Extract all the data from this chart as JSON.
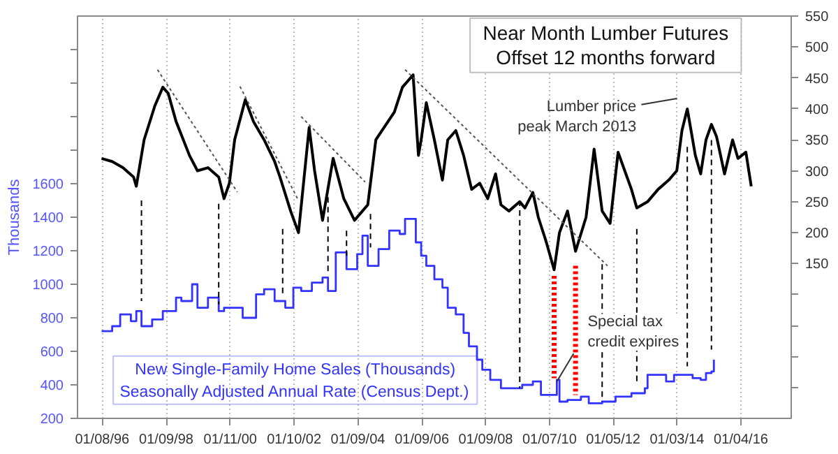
{
  "chart_data": {
    "type": "line",
    "title": "Near Month Lumber Futures",
    "subtitle": "Offset 12 months forward",
    "ylabel": "Thousands",
    "xlim": [
      "1995-04",
      "2017-08"
    ],
    "xticks": [
      {
        "value": "1996-01-08",
        "label": "01/08/96"
      },
      {
        "value": "1998-01-09",
        "label": "01/09/98"
      },
      {
        "value": "2000-01-11",
        "label": "01/11/00"
      },
      {
        "value": "2002-01-10",
        "label": "01/10/02"
      },
      {
        "value": "2004-01-09",
        "label": "01/09/04"
      },
      {
        "value": "2006-01-09",
        "label": "01/09/06"
      },
      {
        "value": "2008-01-09",
        "label": "01/09/08"
      },
      {
        "value": "2010-01-07",
        "label": "01/07/10"
      },
      {
        "value": "2012-01-05",
        "label": "01/05/12"
      },
      {
        "value": "2014-01-03",
        "label": "01/03/14"
      },
      {
        "value": "2016-01-04",
        "label": "01/04/16"
      }
    ],
    "ylim": [
      200,
      2600
    ],
    "yticks": [
      200,
      400,
      600,
      800,
      1000,
      1200,
      1400,
      1600,
      {
        "value": 1800,
        "label": null
      },
      {
        "value": 2000,
        "label": null
      },
      {
        "value": 2200,
        "label": null
      },
      {
        "value": 2400,
        "label": null
      }
    ],
    "y2lim": [
      -100,
      550
    ],
    "y2ticks": [
      {
        "value": -50,
        "label": null
      },
      {
        "value": 0,
        "label": null
      },
      {
        "value": 50,
        "label": null
      },
      {
        "value": 100,
        "label": null
      },
      150,
      200,
      250,
      300,
      350,
      400,
      450,
      500,
      550
    ],
    "grid": "x",
    "series": [
      {
        "axis": "y2",
        "color": "#000000",
        "x": [
          "1996-01",
          "1996-05",
          "1996-09",
          "1997-01",
          "1997-02",
          "1997-05",
          "1997-09",
          "1997-12",
          "1998-02",
          "1998-05",
          "1998-10",
          "1999-01",
          "1999-05",
          "1999-09",
          "1999-11",
          "2000-01",
          "2000-03",
          "2000-07",
          "2000-10",
          "2001-02",
          "2001-06",
          "2001-08",
          "2001-12",
          "2002-03",
          "2002-07",
          "2002-09",
          "2002-12",
          "2003-04",
          "2003-08",
          "2003-12",
          "2004-03",
          "2004-05",
          "2004-08",
          "2005-03",
          "2005-06",
          "2005-10",
          "2005-12",
          "2006-01",
          "2006-03",
          "2006-06",
          "2006-09",
          "2006-11",
          "2007-02",
          "2007-05",
          "2007-08",
          "2007-11",
          "2008-02",
          "2008-05",
          "2008-07",
          "2008-10",
          "2009-02",
          "2009-04",
          "2009-07",
          "2009-09",
          "2009-12",
          "2010-03",
          "2010-05",
          "2010-08",
          "2010-11",
          "2011-03",
          "2011-06",
          "2011-09",
          "2011-12",
          "2012-03",
          "2012-08",
          "2012-10",
          "2013-02",
          "2013-06",
          "2013-10",
          "2014-01",
          "2014-03",
          "2014-05",
          "2014-06",
          "2014-08",
          "2014-10",
          "2014-12",
          "2015-02",
          "2015-04",
          "2015-07",
          "2015-10",
          "2015-12",
          "2016-03",
          "2016-05"
        ],
        "values": [
          320,
          315,
          305,
          290,
          275,
          350,
          405,
          435,
          425,
          380,
          325,
          300,
          305,
          290,
          255,
          280,
          350,
          415,
          380,
          350,
          315,
          290,
          235,
          200,
          370,
          300,
          220,
          320,
          255,
          220,
          235,
          245,
          350,
          395,
          435,
          455,
          325,
          350,
          410,
          350,
          285,
          350,
          365,
          325,
          270,
          280,
          255,
          295,
          245,
          235,
          250,
          240,
          265,
          225,
          185,
          140,
          200,
          235,
          170,
          225,
          335,
          235,
          215,
          330,
          270,
          240,
          250,
          270,
          285,
          300,
          365,
          400,
          375,
          325,
          295,
          350,
          375,
          355,
          295,
          350,
          320,
          330,
          275
        ]
      },
      {
        "type": "step",
        "name": "New Single-Family Home Sales (Thousands)",
        "color": "#3333ff",
        "x": [
          "1996-01",
          "1996-05",
          "1996-08",
          "1996-12",
          "1997-02",
          "1997-04",
          "1997-08",
          "1997-12",
          "1998-05",
          "1998-07",
          "1998-11",
          "1999-01",
          "1999-05",
          "1999-09",
          "1999-11",
          "2000-04",
          "2000-06",
          "2000-11",
          "2001-02",
          "2001-06",
          "2001-10",
          "2002-01",
          "2002-04",
          "2002-08",
          "2002-12",
          "2003-02",
          "2003-05",
          "2003-09",
          "2004-01",
          "2004-03",
          "2004-05",
          "2004-09",
          "2005-01",
          "2005-05",
          "2005-07",
          "2005-11",
          "2006-01",
          "2006-03",
          "2006-06",
          "2006-09",
          "2006-11",
          "2007-02",
          "2007-05",
          "2007-07",
          "2007-10",
          "2007-12",
          "2008-03",
          "2008-07",
          "2008-11",
          "2009-03",
          "2009-07",
          "2009-10",
          "2010-04",
          "2010-05",
          "2010-08",
          "2011-01",
          "2011-04",
          "2011-09",
          "2012-02",
          "2012-08",
          "2013-01",
          "2013-02",
          "2013-09",
          "2013-12",
          "2014-07",
          "2014-10",
          "2014-12",
          "2015-02",
          "2015-03"
        ],
        "values": [
          720,
          750,
          820,
          780,
          840,
          750,
          790,
          840,
          920,
          900,
          1000,
          860,
          920,
          840,
          860,
          860,
          800,
          940,
          970,
          900,
          860,
          980,
          960,
          1010,
          1040,
          960,
          1190,
          1090,
          1180,
          1290,
          1110,
          1210,
          1320,
          1300,
          1390,
          1250,
          1170,
          1110,
          1030,
          980,
          860,
          820,
          710,
          630,
          550,
          490,
          430,
          380,
          380,
          400,
          420,
          340,
          430,
          300,
          310,
          330,
          290,
          300,
          330,
          350,
          380,
          460,
          420,
          460,
          440,
          430,
          470,
          480,
          550
        ]
      },
      {
        "type": "line",
        "line_style": "dashed",
        "color": "#000000",
        "x": [
          "1997-04",
          "1997-04",
          null,
          "1999-09",
          "1999-09",
          null,
          "2001-09",
          "2001-09",
          null,
          "2003-02",
          "2003-02",
          null,
          "2003-09",
          "2003-09",
          null,
          "2004-06",
          "2004-06",
          null,
          "2009-02",
          "2009-02",
          null,
          "2011-09",
          "2011-09",
          null,
          "2012-10",
          "2012-10",
          null,
          "2014-05",
          "2014-05",
          null,
          "2015-02",
          "2015-02"
        ],
        "values": [
          1500,
          900,
          null,
          1480,
          880,
          null,
          1330,
          940,
          null,
          1520,
          1070,
          null,
          1320,
          1170,
          null,
          1420,
          1220,
          null,
          1500,
          380,
          null,
          1120,
          300,
          null,
          1330,
          420,
          null,
          1820,
          510,
          null,
          1860,
          610
        ]
      },
      {
        "type": "line",
        "line_style": "dotted",
        "color": "#ff0000",
        "x": [
          "2010-03",
          "2010-03",
          null,
          "2010-11",
          "2010-11"
        ],
        "values": [
          1050,
          440,
          null,
          1110,
          340
        ]
      },
      {
        "type": "line",
        "line_style": "dotted",
        "color": "#555555",
        "x": [
          "1997-10",
          "2000-04",
          null,
          "2000-05",
          "2002-03",
          null,
          "2002-04",
          "2004-04",
          null,
          "2005-07",
          "2011-11"
        ],
        "values": [
          2280,
          1550,
          null,
          2180,
          1500,
          null,
          2000,
          1610,
          null,
          2280,
          1110
        ]
      }
    ],
    "annotations": [
      "Lumber price\npeak March 2013",
      {
        "text": "Special tax\ncredit expires",
        "x": "2010-04",
        "y": 420
      },
      "Seasonally Adjusted Annual Rate (Census Dept.)"
    ]
  }
}
